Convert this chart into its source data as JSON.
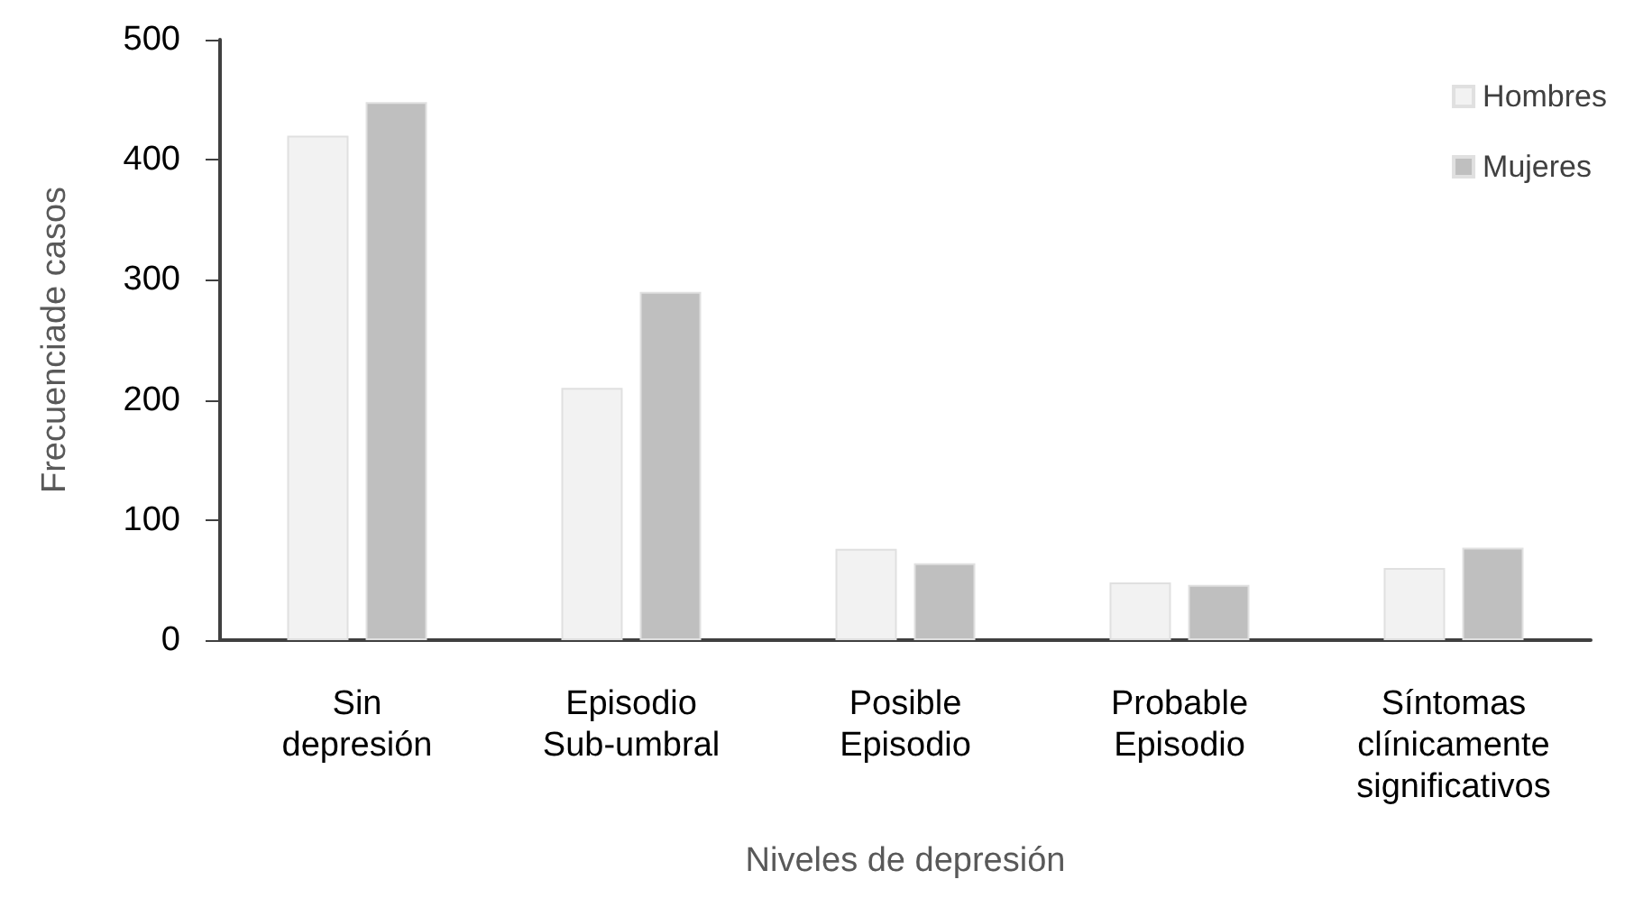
{
  "chart_data": {
    "type": "bar",
    "xlabel": "Niveles de depresión",
    "ylabel": "Frecuenciade casos",
    "categories": [
      "Sin\ndepresión",
      "Episodio\nSub-umbral",
      "Posible\nEpisodio",
      "Probable\nEpisodio",
      "Síntomas\nclínicamente\nsignificativos"
    ],
    "series": [
      {
        "name": "Hombres",
        "color": "#f2f2f2",
        "values": [
          420,
          210,
          76,
          48,
          60
        ]
      },
      {
        "name": "Mujeres",
        "color": "#bfbfbf",
        "values": [
          448,
          290,
          64,
          46,
          77
        ]
      }
    ],
    "ylim": [
      0,
      500
    ],
    "yticks": [
      0,
      100,
      200,
      300,
      400,
      500
    ],
    "grid": false,
    "legend": "top right"
  }
}
